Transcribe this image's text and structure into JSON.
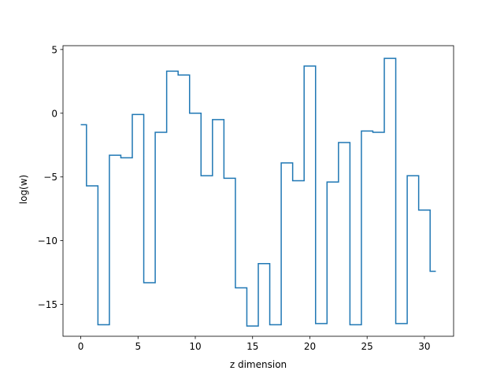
{
  "chart_data": {
    "type": "line",
    "drawstyle": "steps-mid",
    "title": "",
    "xlabel": "z dimension",
    "ylabel": "log(w)",
    "xlim": [
      -1.55,
      32.55
    ],
    "ylim": [
      -17.5,
      5.3
    ],
    "xticks": [
      0,
      5,
      10,
      15,
      20,
      25,
      30
    ],
    "yticks": [
      5,
      0,
      -5,
      -10,
      -15
    ],
    "xtick_labels": [
      "0",
      "5",
      "10",
      "15",
      "20",
      "25",
      "30"
    ],
    "ytick_labels": [
      "5",
      "0",
      "−5",
      "−10",
      "−15"
    ],
    "grid": false,
    "line_color": "#1f77b4",
    "series": [
      {
        "x": [
          0,
          1,
          2,
          3,
          4,
          5,
          6,
          7,
          8,
          9,
          10,
          11,
          12,
          13,
          14,
          15,
          16,
          17,
          18,
          19,
          20,
          21,
          22,
          23,
          24,
          25,
          26,
          27,
          28,
          29,
          30,
          31
        ],
        "values": [
          -0.9,
          -5.7,
          -16.6,
          -3.3,
          -3.5,
          -0.1,
          -13.3,
          -1.5,
          3.3,
          3.0,
          0.0,
          -4.9,
          -0.5,
          -5.1,
          -13.7,
          -16.7,
          -11.8,
          -16.6,
          -3.9,
          -5.3,
          3.7,
          -16.5,
          -5.4,
          -2.3,
          -16.6,
          -1.4,
          -1.5,
          4.3,
          -16.5,
          -4.9,
          -7.6,
          -12.4
        ]
      }
    ]
  }
}
